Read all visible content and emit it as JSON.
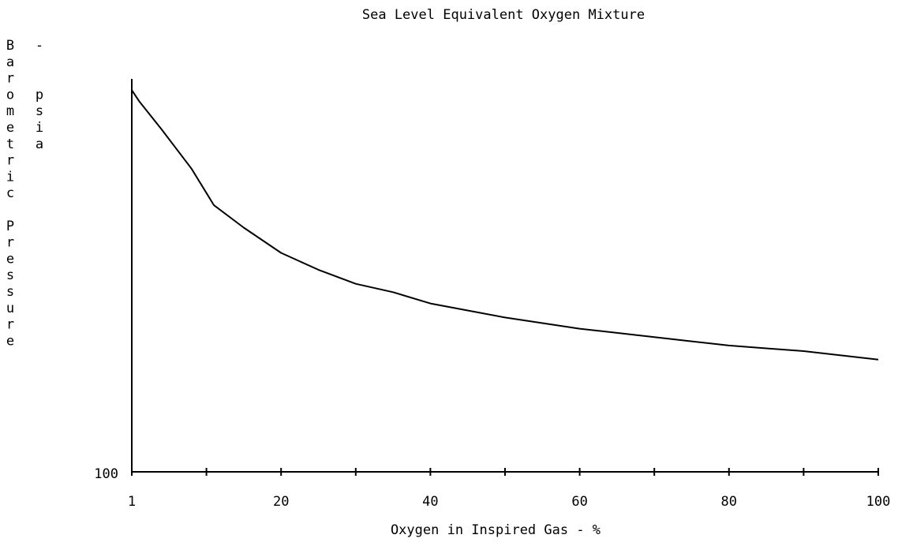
{
  "chart_data": {
    "type": "line",
    "title": "Sea Level Equivalent Oxygen Mixture",
    "xlabel": "Oxygen in Inspired Gas - %",
    "ylabel_main": "Barometric Pressure",
    "ylabel_unit": "- psia",
    "x_tick_labels": [
      "1",
      "20",
      "40",
      "60",
      "80",
      "100"
    ],
    "y_tick_labels": [
      "100"
    ],
    "xlim": [
      0,
      100
    ],
    "grid": false,
    "legend": "none",
    "series": [
      {
        "x": [
          0,
          0,
          1,
          4,
          8,
          11,
          15,
          20,
          25,
          30,
          35,
          40,
          45,
          50,
          55,
          60,
          65,
          70,
          75,
          80,
          85,
          90,
          95,
          100
        ],
        "y": [
          100,
          1460,
          1420,
          1320,
          1180,
          1050,
          970,
          880,
          820,
          770,
          740,
          700,
          675,
          650,
          630,
          610,
          595,
          580,
          565,
          550,
          540,
          530,
          515,
          500
        ]
      }
    ],
    "line_color": "#000000"
  }
}
